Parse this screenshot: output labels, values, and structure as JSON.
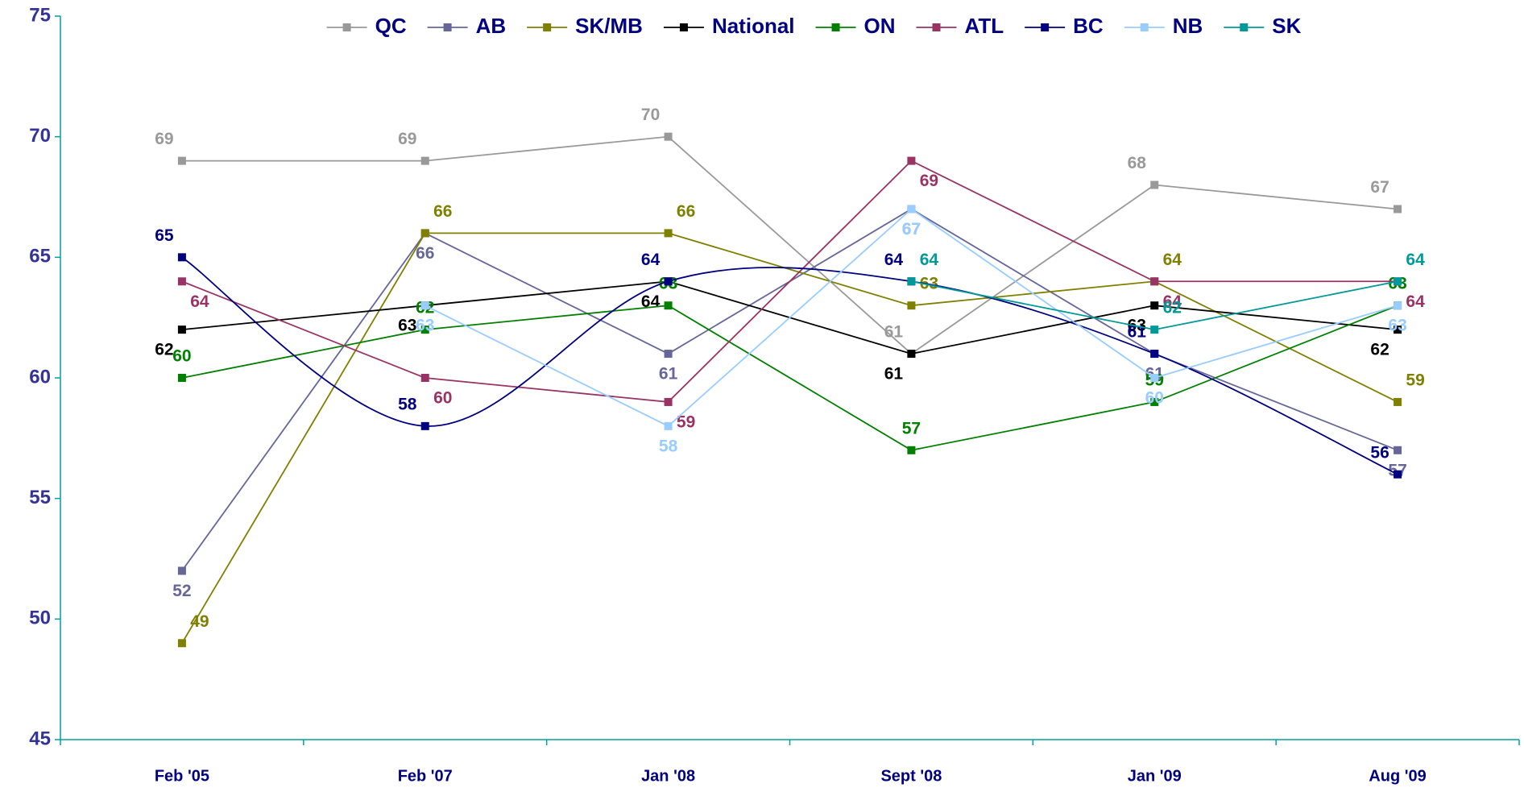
{
  "chart_data": {
    "type": "line",
    "categories": [
      "Feb '05",
      "Feb '07",
      "Jan '08",
      "Sept '08",
      "Jan '09",
      "Aug '09"
    ],
    "ylim": [
      45,
      75
    ],
    "yticks": [
      45,
      50,
      55,
      60,
      65,
      70,
      75
    ],
    "legend": "top",
    "series": [
      {
        "name": "QC",
        "color": "#999999",
        "values": [
          69,
          69,
          70,
          61,
          68,
          67
        ]
      },
      {
        "name": "AB",
        "color": "#666699",
        "values": [
          52,
          66,
          61,
          67,
          61,
          57
        ]
      },
      {
        "name": "SK/MB",
        "color": "#808000",
        "values": [
          49,
          66,
          66,
          63,
          64,
          59
        ]
      },
      {
        "name": "National",
        "color": "#000000",
        "values": [
          62,
          63,
          64,
          61,
          63,
          62
        ]
      },
      {
        "name": "ON",
        "color": "#008000",
        "values": [
          60,
          62,
          63,
          57,
          59,
          63
        ]
      },
      {
        "name": "ATL",
        "color": "#993366",
        "values": [
          64,
          60,
          59,
          69,
          64,
          64
        ]
      },
      {
        "name": "BC",
        "color": "#000080",
        "smooth": true,
        "values": [
          65,
          58,
          64,
          64,
          61,
          56
        ]
      },
      {
        "name": "NB",
        "color": "#99ccff",
        "values": [
          null,
          63,
          58,
          67,
          60,
          63
        ]
      },
      {
        "name": "SK",
        "color": "#009999",
        "values": [
          null,
          null,
          null,
          64,
          62,
          64
        ]
      }
    ]
  }
}
